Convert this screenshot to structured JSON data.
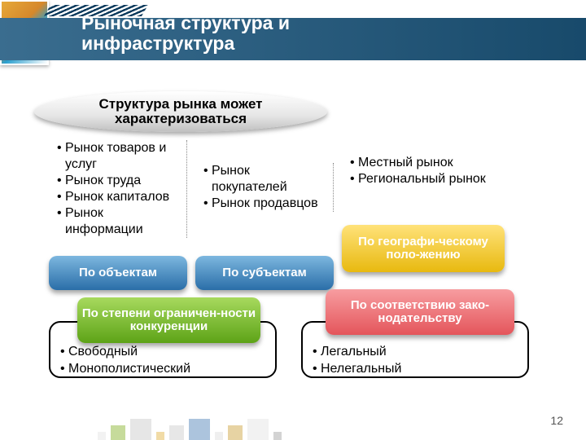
{
  "title_line1": "Рыночная структура и",
  "title_line2": "инфраструктура",
  "oval_text": "Структура рынка может характеризоваться",
  "columns": {
    "c1": {
      "items": [
        "Рынок товаров и услуг",
        "Рынок труда",
        "Рынок капиталов",
        "Рынок информации"
      ],
      "pill": "По объектам",
      "pill_color": "blue"
    },
    "c2": {
      "items": [
        "Рынок покупателей",
        "Рынок продавцов"
      ],
      "pill": "По субъектам",
      "pill_color": "blue"
    },
    "c3": {
      "items": [
        "Местный рынок",
        "Региональный рынок"
      ],
      "pill": "По географи-ческому поло-жению",
      "pill_color": "yellow"
    }
  },
  "bottom": {
    "green_pill": "По степени ограничен-ности конкуренции",
    "red_pill": "По соответствию зако-нодательству",
    "box1_items": [
      "Свободный",
      "Монополистический"
    ],
    "box2_items": [
      "Легальный",
      "Нелегальный"
    ]
  },
  "page_number": "12",
  "colors": {
    "header_grad_start": "#3a6d8f",
    "header_grad_end": "#184a6b",
    "blue_pill_top": "#7db7df",
    "blue_pill_bot": "#2a6ea8",
    "yellow_pill_top": "#ffe27a",
    "yellow_pill_bot": "#e8b90f",
    "green_pill_top": "#a7d95e",
    "green_pill_bot": "#5da317",
    "red_pill_top": "#f79da0",
    "red_pill_bot": "#e4555b",
    "box_border": "#000000",
    "background": "#ffffff",
    "footer_sq": [
      "#e6e6e6",
      "#8fb93a",
      "#cfcfcf",
      "#e5b94f",
      "#d0d0d0",
      "#5b8bbd",
      "#e0e0e0",
      "#d0a84a",
      "#e6e6e6",
      "#a8a8a8"
    ]
  },
  "fonts": {
    "title_size": 23,
    "title_weight": "bold",
    "oval_size": 17,
    "oval_weight": "bold",
    "list_size": 16,
    "pill_size": 15
  }
}
